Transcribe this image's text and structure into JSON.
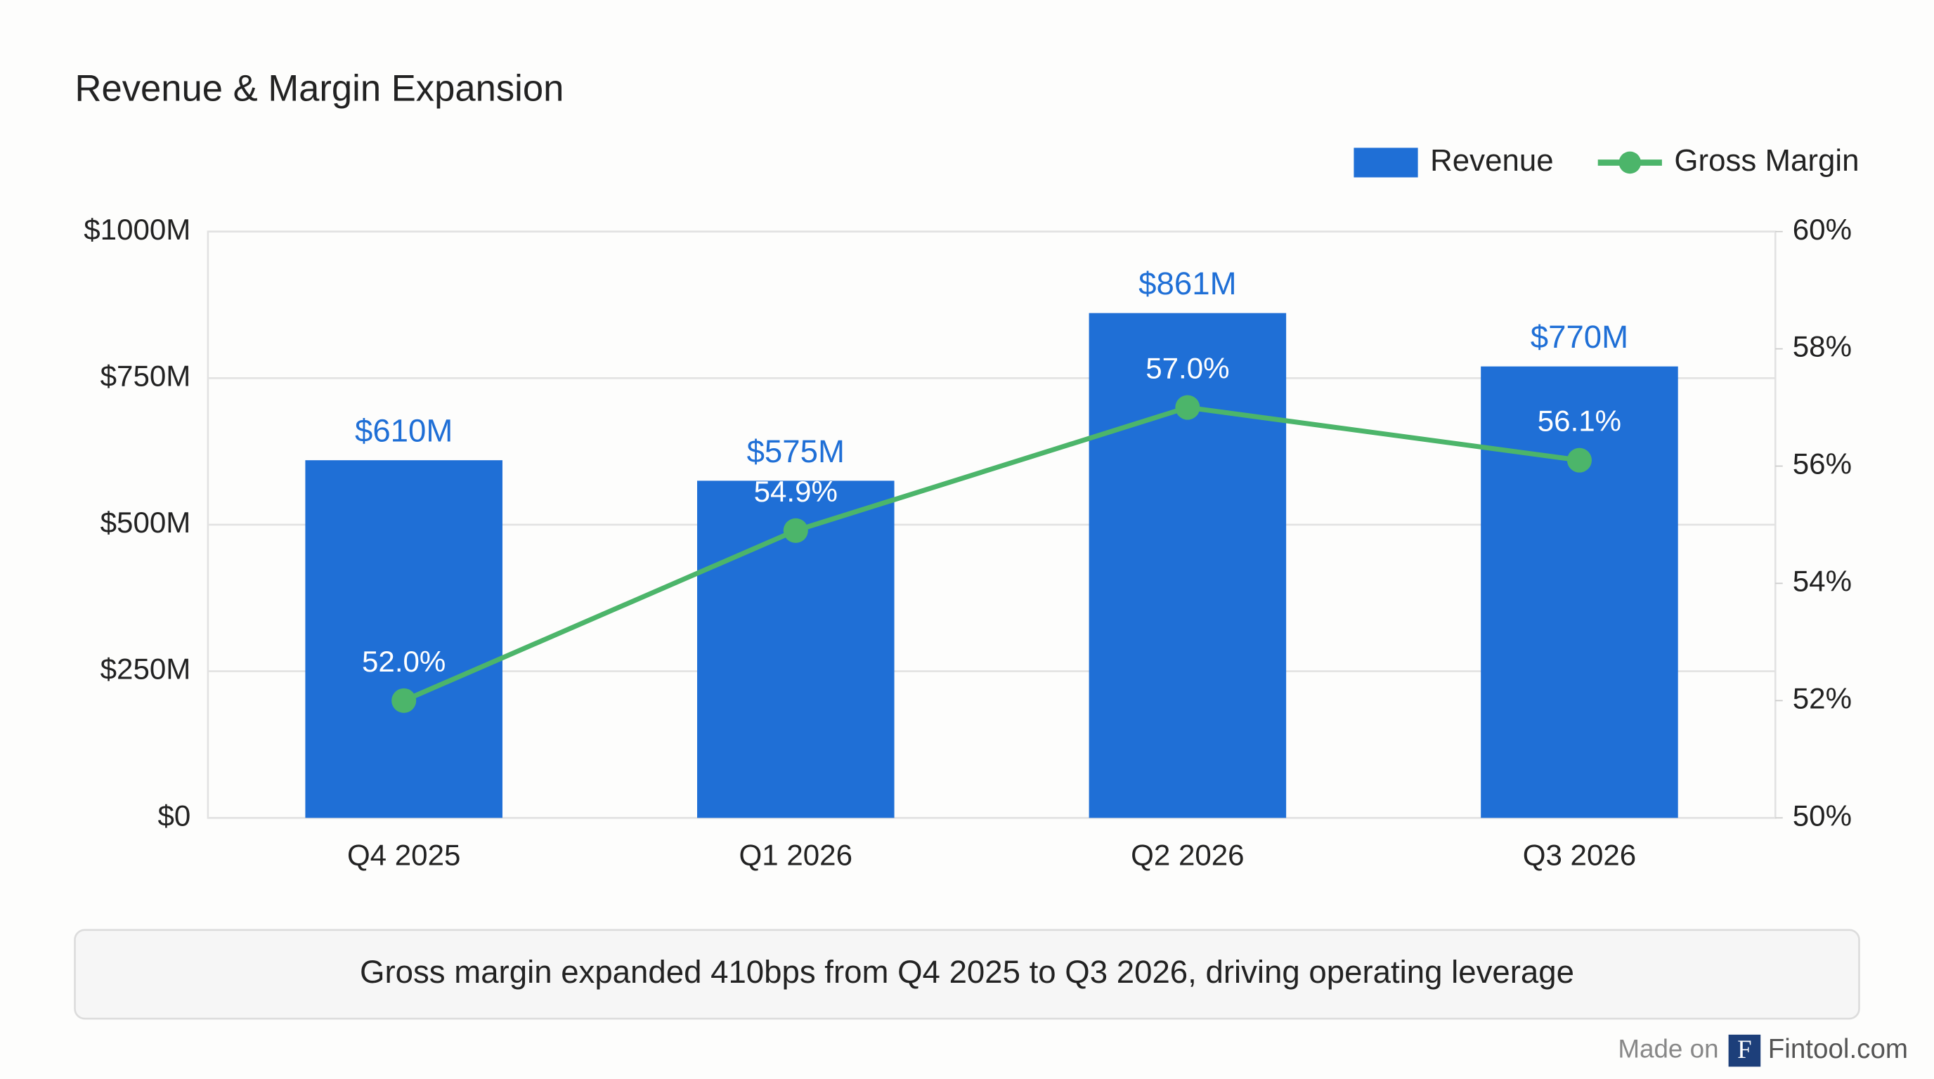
{
  "chart_data": {
    "type": "bar",
    "title": "Revenue & Margin Expansion",
    "categories": [
      "Q4 2025",
      "Q1 2026",
      "Q2 2026",
      "Q3 2026"
    ],
    "series": [
      {
        "name": "Revenue",
        "type": "bar",
        "color": "#1f6fd6",
        "values": [
          610,
          575,
          861,
          770
        ],
        "value_labels": [
          "$610M",
          "$575M",
          "$861M",
          "$770M"
        ]
      },
      {
        "name": "Gross Margin",
        "type": "line",
        "axis": "y2",
        "color": "#4cb56a",
        "values": [
          52.0,
          54.9,
          57.0,
          56.1
        ],
        "value_labels": [
          "52.0%",
          "54.9%",
          "57.0%",
          "56.1%"
        ]
      }
    ],
    "ylim": [
      0,
      1000
    ],
    "yticks": [
      {
        "value": 0,
        "label": "$0"
      },
      {
        "value": 250,
        "label": "$250M"
      },
      {
        "value": 500,
        "label": "$500M"
      },
      {
        "value": 750,
        "label": "$750M"
      },
      {
        "value": 1000,
        "label": "$1000M"
      }
    ],
    "y2lim": [
      50,
      60
    ],
    "y2ticks": [
      {
        "value": 50,
        "label": "50%"
      },
      {
        "value": 52,
        "label": "52%"
      },
      {
        "value": 54,
        "label": "54%"
      },
      {
        "value": 56,
        "label": "56%"
      },
      {
        "value": 58,
        "label": "58%"
      },
      {
        "value": 60,
        "label": "60%"
      }
    ],
    "grid": true,
    "legend": "top-right",
    "annotation": "Gross margin expanded 410bps from Q4 2025 to Q3 2026, driving operating leverage"
  },
  "footer": {
    "prefix": "Made on",
    "logo": "F",
    "brand": "Fintool.com"
  }
}
